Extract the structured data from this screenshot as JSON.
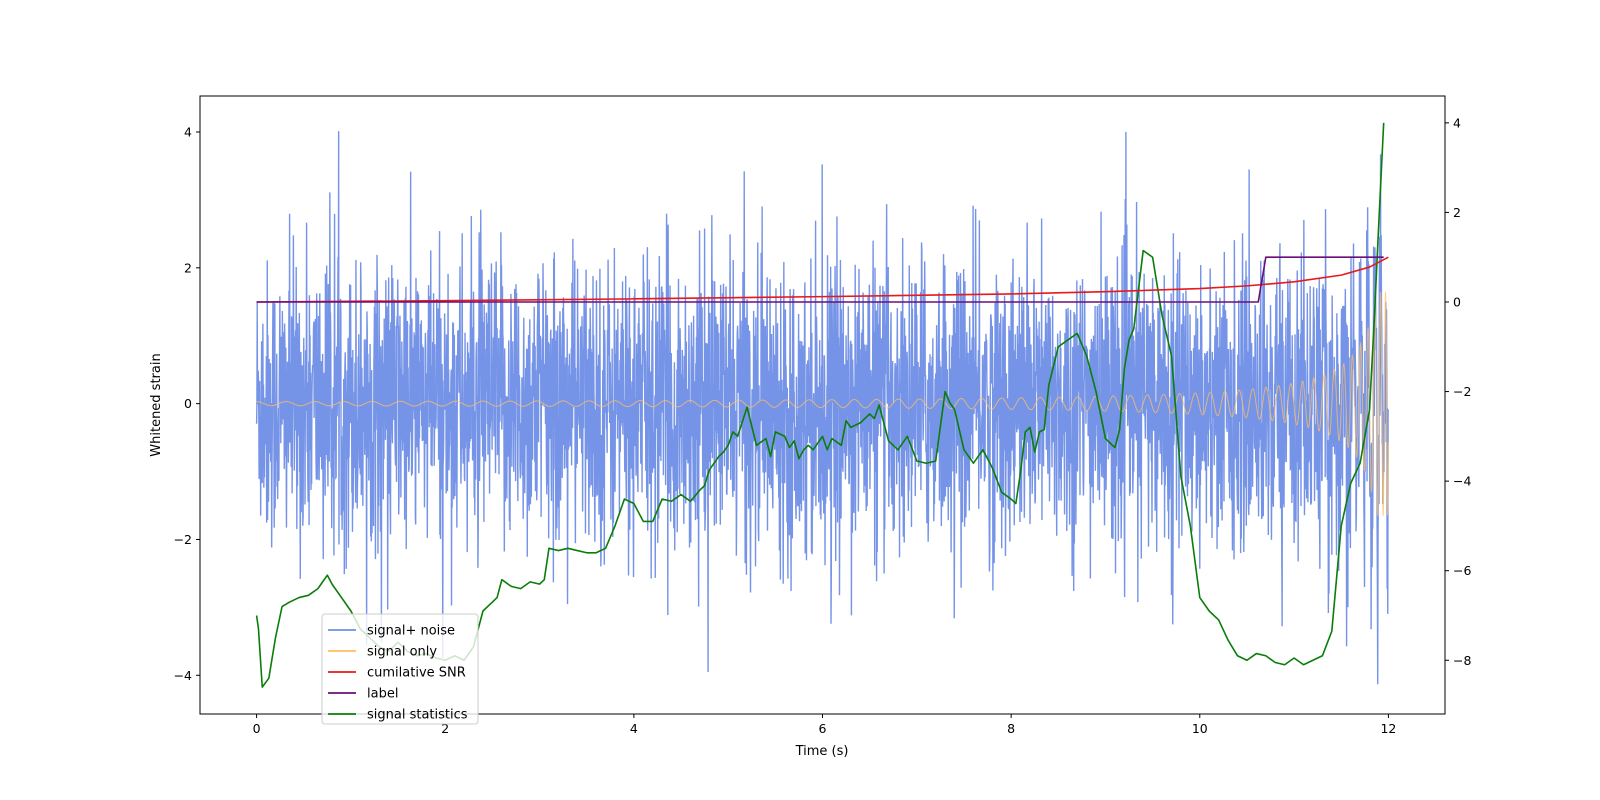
{
  "chart_data": {
    "type": "line",
    "title": "",
    "xlabel": "Time (s)",
    "ylabel": "Whitened strain",
    "y2label": "",
    "xlim": [
      -0.6,
      12.6
    ],
    "ylim": [
      -4.57,
      4.53
    ],
    "y2lim": [
      -9.2,
      4.6
    ],
    "x_ticks": [
      0,
      2,
      4,
      6,
      8,
      10,
      12
    ],
    "y_ticks": [
      -4,
      -2,
      0,
      2,
      4
    ],
    "y2_ticks": [
      -8,
      -6,
      -4,
      -2,
      0,
      2,
      4
    ],
    "x_tick_labels": [
      "0",
      "2",
      "4",
      "6",
      "8",
      "10",
      "12"
    ],
    "y_tick_labels": [
      "−4",
      "−2",
      "0",
      "2",
      "4"
    ],
    "y2_tick_labels": [
      "−8",
      "−6",
      "−4",
      "−2",
      "0",
      "2",
      "4"
    ],
    "grid": false,
    "legend_position": "lower-left",
    "series": [
      {
        "name": "signal+ noise",
        "axis": "left",
        "color": "#6f8ee6",
        "style": "noise",
        "description": "dense noisy trace spanning roughly -3.5 to 3.5 over 0–12 s",
        "x_range": [
          0,
          12
        ],
        "approx_range": [
          -4.15,
          4.08
        ]
      },
      {
        "name": "signal only",
        "axis": "left",
        "color": "#ffbf60",
        "style": "chirp",
        "x_range": [
          0,
          12
        ],
        "start_amplitude": 0.03,
        "end_amplitude": 1.65
      },
      {
        "name": "cumilative SNR",
        "axis": "right",
        "color": "#e8191c",
        "x": [
          0,
          2,
          4,
          6,
          8,
          9,
          10,
          10.5,
          11,
          11.5,
          11.8,
          12
        ],
        "y": [
          0.0,
          0.03,
          0.07,
          0.12,
          0.18,
          0.23,
          0.3,
          0.36,
          0.45,
          0.6,
          0.78,
          1.0
        ]
      },
      {
        "name": "label",
        "axis": "right",
        "color": "#6a0f7a",
        "x": [
          0,
          10.62,
          10.7,
          11.95
        ],
        "y": [
          0,
          0,
          1,
          1
        ]
      },
      {
        "name": "signal statistics",
        "axis": "right",
        "color": "#0a7d0a",
        "x": [
          0,
          0.02,
          0.06,
          0.13,
          0.2,
          0.27,
          0.35,
          0.45,
          0.55,
          0.65,
          0.7,
          0.75,
          0.8,
          0.9,
          1.0,
          1.1,
          1.2,
          1.3,
          1.4,
          1.5,
          1.6,
          1.7,
          1.8,
          1.9,
          2.0,
          2.1,
          2.2,
          2.3,
          2.4,
          2.5,
          2.55,
          2.6,
          2.7,
          2.8,
          2.9,
          3.0,
          3.05,
          3.1,
          3.2,
          3.3,
          3.4,
          3.5,
          3.6,
          3.7,
          3.8,
          3.9,
          4.0,
          4.1,
          4.2,
          4.3,
          4.4,
          4.5,
          4.6,
          4.7,
          4.75,
          4.8,
          4.9,
          4.95,
          5.0,
          5.05,
          5.1,
          5.2,
          5.3,
          5.4,
          5.45,
          5.5,
          5.6,
          5.65,
          5.7,
          5.75,
          5.8,
          5.85,
          5.9,
          6.0,
          6.05,
          6.1,
          6.2,
          6.25,
          6.3,
          6.4,
          6.5,
          6.55,
          6.6,
          6.7,
          6.8,
          6.9,
          7.0,
          7.1,
          7.2,
          7.3,
          7.35,
          7.4,
          7.5,
          7.6,
          7.7,
          7.8,
          7.9,
          8.0,
          8.05,
          8.1,
          8.15,
          8.2,
          8.25,
          8.3,
          8.35,
          8.4,
          8.5,
          8.6,
          8.7,
          8.8,
          8.9,
          9.0,
          9.1,
          9.15,
          9.2,
          9.25,
          9.3,
          9.4,
          9.5,
          9.6,
          9.7,
          9.8,
          9.9,
          10.0,
          10.1,
          10.2,
          10.3,
          10.4,
          10.5,
          10.6,
          10.7,
          10.8,
          10.9,
          11.0,
          11.1,
          11.2,
          11.3,
          11.4,
          11.5,
          11.6,
          11.7,
          11.8,
          11.85,
          11.9,
          11.95
        ],
        "y": [
          -7.0,
          -7.3,
          -8.6,
          -8.4,
          -7.5,
          -6.8,
          -6.7,
          -6.6,
          -6.55,
          -6.4,
          -6.25,
          -6.1,
          -6.3,
          -6.6,
          -6.9,
          -7.3,
          -7.5,
          -7.7,
          -7.8,
          -7.6,
          -7.8,
          -7.9,
          -7.85,
          -7.95,
          -8.0,
          -7.9,
          -8.0,
          -7.7,
          -6.9,
          -6.7,
          -6.6,
          -6.2,
          -6.35,
          -6.4,
          -6.25,
          -6.3,
          -6.2,
          -5.5,
          -5.55,
          -5.5,
          -5.55,
          -5.6,
          -5.6,
          -5.5,
          -5.0,
          -4.4,
          -4.5,
          -4.9,
          -4.9,
          -4.4,
          -4.45,
          -4.3,
          -4.45,
          -4.2,
          -4.1,
          -3.75,
          -3.45,
          -3.35,
          -3.2,
          -2.9,
          -3.0,
          -2.35,
          -3.2,
          -3.05,
          -3.45,
          -2.9,
          -3.0,
          -3.25,
          -3.1,
          -3.5,
          -3.3,
          -3.2,
          -3.3,
          -3.0,
          -3.3,
          -3.05,
          -3.2,
          -2.65,
          -2.8,
          -2.7,
          -2.5,
          -2.6,
          -2.3,
          -3.1,
          -3.3,
          -3.0,
          -3.55,
          -3.6,
          -3.55,
          -2.0,
          -2.25,
          -2.4,
          -3.3,
          -3.6,
          -3.3,
          -3.7,
          -4.25,
          -4.4,
          -4.5,
          -3.8,
          -2.9,
          -2.8,
          -3.35,
          -2.9,
          -2.85,
          -1.85,
          -1.0,
          -0.85,
          -0.7,
          -1.2,
          -2.0,
          -3.05,
          -3.25,
          -2.85,
          -1.5,
          -0.85,
          -0.6,
          1.15,
          1.0,
          -0.3,
          -1.2,
          -3.9,
          -5.0,
          -6.6,
          -6.9,
          -7.1,
          -7.55,
          -7.9,
          -8.0,
          -7.85,
          -7.9,
          -8.05,
          -8.1,
          -7.95,
          -8.1,
          -8.0,
          -7.9,
          -7.35,
          -5.0,
          -4.05,
          -3.6,
          -2.4,
          -0.4,
          1.85,
          4.0
        ]
      }
    ]
  },
  "legend": {
    "items": [
      {
        "label": "signal+ noise",
        "color": "#6f8ee6"
      },
      {
        "label": "signal only",
        "color": "#ffbf60"
      },
      {
        "label": "cumilative SNR",
        "color": "#e8191c"
      },
      {
        "label": "label",
        "color": "#6a0f7a"
      },
      {
        "label": "signal statistics",
        "color": "#0a7d0a"
      }
    ]
  }
}
